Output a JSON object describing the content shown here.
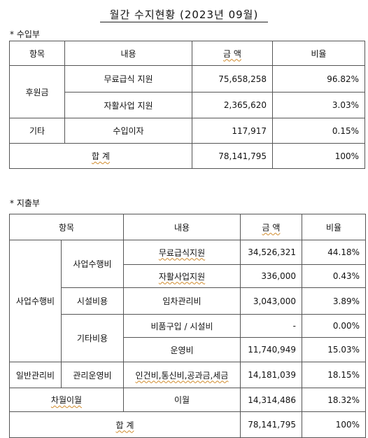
{
  "title": "월간 수지현황 (2023년 09월)",
  "income": {
    "section_label": "* 수입부",
    "headers": [
      "항목",
      "내용",
      "금 액",
      "비율"
    ],
    "group1": "후원금",
    "rows": [
      {
        "content": "무료급식 지원",
        "amount": "75,658,258",
        "ratio": "96.82%"
      },
      {
        "content": "자활사업 지원",
        "amount": "2,365,620",
        "ratio": "3.03%"
      },
      {
        "category": "기타",
        "content": "수입이자",
        "amount": "117,917",
        "ratio": "0.15%"
      }
    ],
    "total": {
      "label": "합 계",
      "amount": "78,141,795",
      "ratio": "100%"
    }
  },
  "expense": {
    "section_label": "* 지출부",
    "headers": [
      "항목",
      "내용",
      "금 액",
      "비율"
    ],
    "cat_main": "사업수행비",
    "sub_business": "사업수행비",
    "sub_facility": "시설비용",
    "sub_other": "기타비용",
    "cat_general": "일반관리비",
    "sub_general": "관리운영비",
    "carry_label": "차월이월",
    "rows": [
      {
        "content": "무료급식지원",
        "amount": "34,526,321",
        "ratio": "44.18%"
      },
      {
        "content": "자활사업지원",
        "amount": "336,000",
        "ratio": "0.43%"
      },
      {
        "content": "임차관리비",
        "amount": "3,043,000",
        "ratio": "3.89%"
      },
      {
        "content": "비품구입 / 시설비",
        "amount": "-",
        "ratio": "0.00%"
      },
      {
        "content": "운영비",
        "amount": "11,740,949",
        "ratio": "15.03%"
      },
      {
        "content": "인건비,통신비,공과금,세금",
        "amount": "14,181,039",
        "ratio": "18.15%"
      },
      {
        "content": "이월",
        "amount": "14,314,486",
        "ratio": "18.32%"
      }
    ],
    "total": {
      "label": "합 계",
      "amount": "78,141,795",
      "ratio": "100%"
    }
  }
}
